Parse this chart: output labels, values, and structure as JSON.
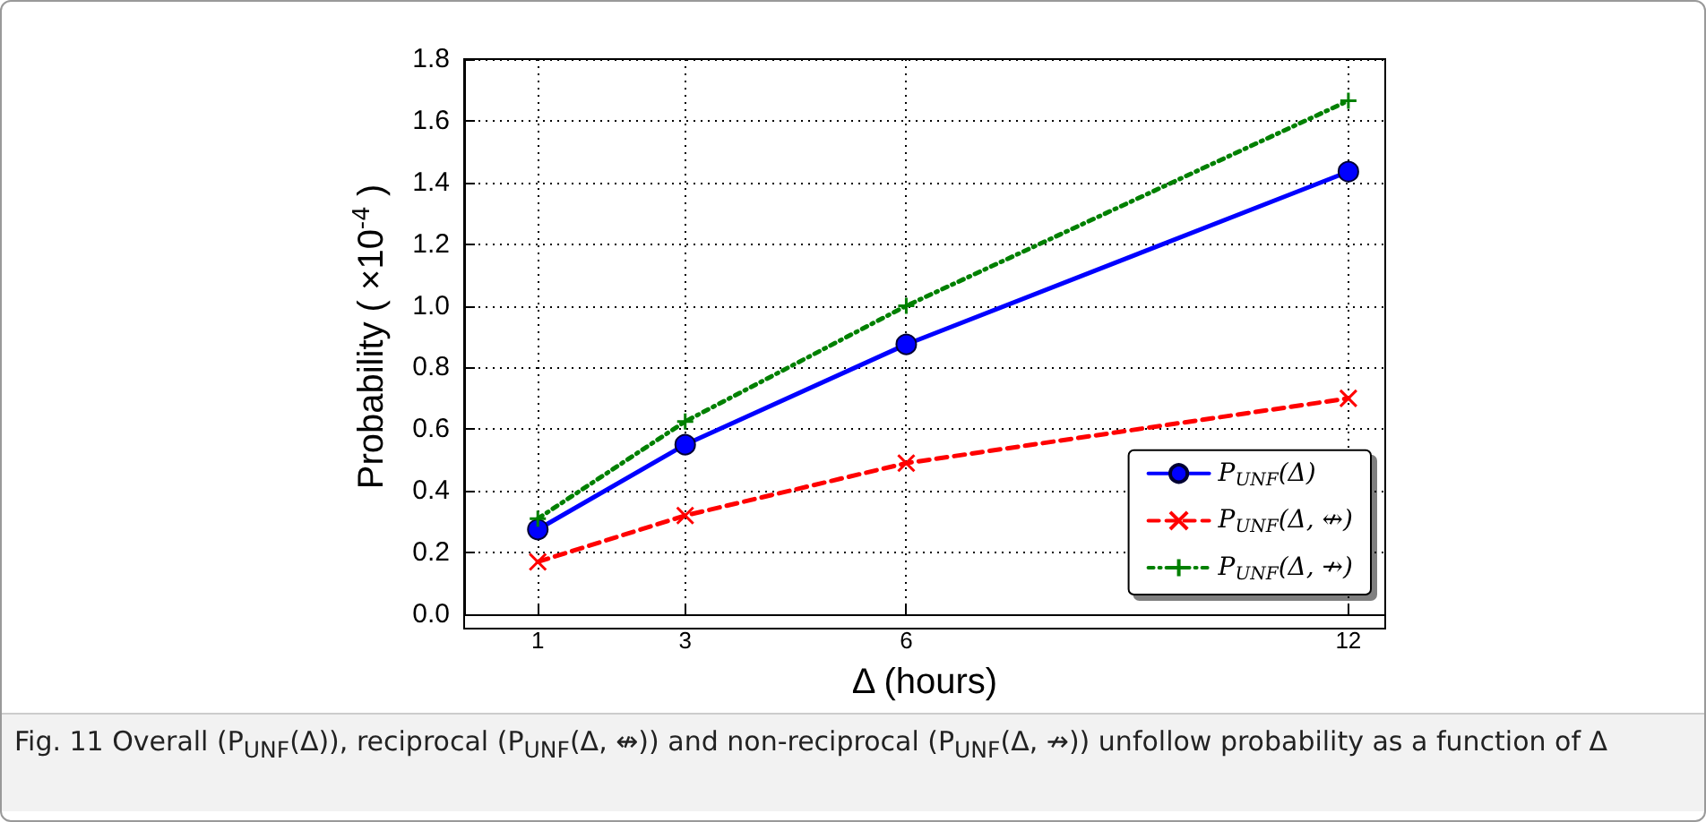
{
  "chart_data": {
    "type": "line",
    "x": [
      1,
      3,
      6,
      12
    ],
    "xlim": [
      0,
      12.5
    ],
    "xticks": [
      1,
      3,
      6,
      12
    ],
    "ylim": [
      0,
      1.8
    ],
    "yticks": [
      {
        "value": 0,
        "label": "0.0"
      },
      {
        "value": 0.2,
        "label": "0.2"
      },
      {
        "value": 0.4,
        "label": "0.4"
      },
      {
        "value": 0.6,
        "label": "0.6"
      },
      {
        "value": 0.8,
        "label": "0.8"
      },
      {
        "value": 1.0,
        "label": "1.0"
      },
      {
        "value": 1.2,
        "label": "1.2"
      },
      {
        "value": 1.4,
        "label": "1.4"
      },
      {
        "value": 1.6,
        "label": "1.6"
      },
      {
        "value": 1.8,
        "label": "1.8"
      }
    ],
    "xlabel": "Δ (hours)",
    "ylabel": "Probability ( ×10$^{-4}$ )",
    "grid": true,
    "legend": "bottom right",
    "series": [
      {
        "name": "P$_{UNF}$(Δ)",
        "color": "#0000ff",
        "marker": "circle",
        "line_style": "solid",
        "values": [
          0.275,
          0.55,
          0.875,
          1.435
        ]
      },
      {
        "name": "P$_{UNF}$(Δ, ↮)",
        "color": "#ff0000",
        "marker": "cross",
        "line_style": "dashed",
        "values": [
          0.17,
          0.32,
          0.49,
          0.7
        ]
      },
      {
        "name": "P$_{UNF}$(Δ, ↛)",
        "color": "#008000",
        "marker": "plus",
        "line_style": "dotted",
        "values": [
          0.31,
          0.625,
          1.0,
          1.665
        ]
      }
    ],
    "annotations": [
      "Fig. 11  Overall (P$_{UNF}$(Δ)), reciprocal (P$_{UNF}$(Δ, ↮)) and non-reciprocal (P$_{UNF}$(Δ, ↛)) unfollow probability as a function of Δ"
    ]
  }
}
